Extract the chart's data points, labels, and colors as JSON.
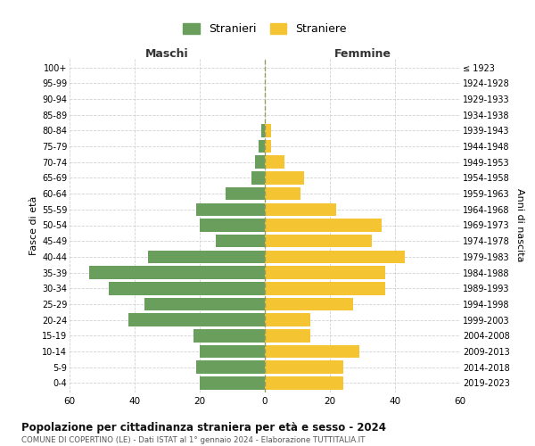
{
  "age_groups": [
    "0-4",
    "5-9",
    "10-14",
    "15-19",
    "20-24",
    "25-29",
    "30-34",
    "35-39",
    "40-44",
    "45-49",
    "50-54",
    "55-59",
    "60-64",
    "65-69",
    "70-74",
    "75-79",
    "80-84",
    "85-89",
    "90-94",
    "95-99",
    "100+"
  ],
  "birth_years": [
    "2019-2023",
    "2014-2018",
    "2009-2013",
    "2004-2008",
    "1999-2003",
    "1994-1998",
    "1989-1993",
    "1984-1988",
    "1979-1983",
    "1974-1978",
    "1969-1973",
    "1964-1968",
    "1959-1963",
    "1954-1958",
    "1949-1953",
    "1944-1948",
    "1939-1943",
    "1934-1938",
    "1929-1933",
    "1924-1928",
    "≤ 1923"
  ],
  "males": [
    20,
    21,
    20,
    22,
    42,
    37,
    48,
    54,
    36,
    15,
    20,
    21,
    12,
    4,
    3,
    2,
    1,
    0,
    0,
    0,
    0
  ],
  "females": [
    24,
    24,
    29,
    14,
    14,
    27,
    37,
    37,
    43,
    33,
    36,
    22,
    11,
    12,
    6,
    2,
    2,
    0,
    0,
    0,
    0
  ],
  "color_male": "#6a9e5c",
  "color_female": "#f5c432",
  "xlim": 60,
  "xtick_labels": [
    "60",
    "40",
    "20",
    "0",
    "20",
    "40",
    "60"
  ],
  "title": "Popolazione per cittadinanza straniera per età e sesso - 2024",
  "subtitle": "COMUNE DI COPERTINO (LE) - Dati ISTAT al 1° gennaio 2024 - Elaborazione TUTTITALIA.IT",
  "ylabel_left": "Fasce di età",
  "ylabel_right": "Anni di nascita",
  "label_maschi": "Maschi",
  "label_femmine": "Femmine",
  "legend_stranieri": "Stranieri",
  "legend_straniere": "Straniere",
  "bg_color": "#ffffff",
  "grid_color": "#cccccc",
  "bar_height": 0.82
}
